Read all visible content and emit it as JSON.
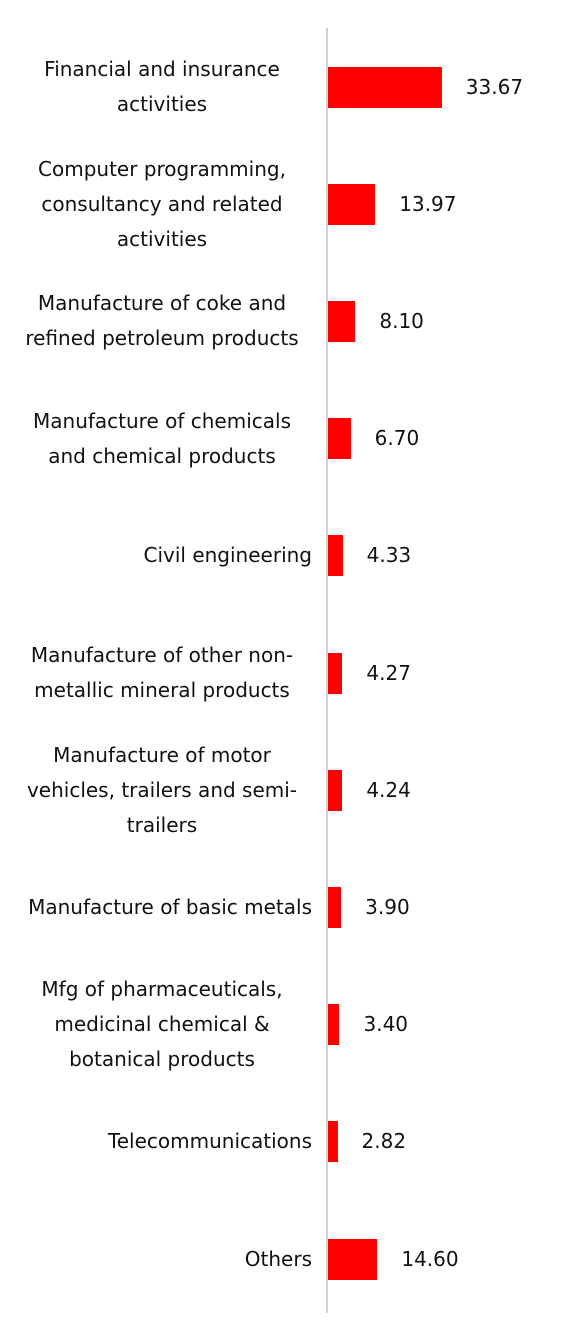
{
  "chart_data": {
    "type": "bar",
    "orientation": "horizontal",
    "color": "#ff0000",
    "categories": [
      "Financial and insurance activities",
      "Computer programming, consultancy and related activities",
      "Manufacture of coke and refined petroleum products",
      "Manufacture of chemicals and chemical products",
      "Civil engineering",
      "Manufacture of other non-metallic mineral products",
      "Manufacture of motor vehicles, trailers and semi-trailers",
      "Manufacture of basic metals",
      "Mfg of pharmaceuticals, medicinal chemical & botanical products",
      "Telecommunications",
      "Others"
    ],
    "values": [
      33.67,
      13.97,
      8.1,
      6.7,
      4.33,
      4.27,
      4.24,
      3.9,
      3.4,
      2.82,
      14.6
    ],
    "value_labels": [
      "33.67",
      "13.97",
      "8.10",
      "6.70",
      "4.33",
      "4.27",
      "4.24",
      "3.90",
      "3.40",
      "2.82",
      "14.60"
    ]
  }
}
